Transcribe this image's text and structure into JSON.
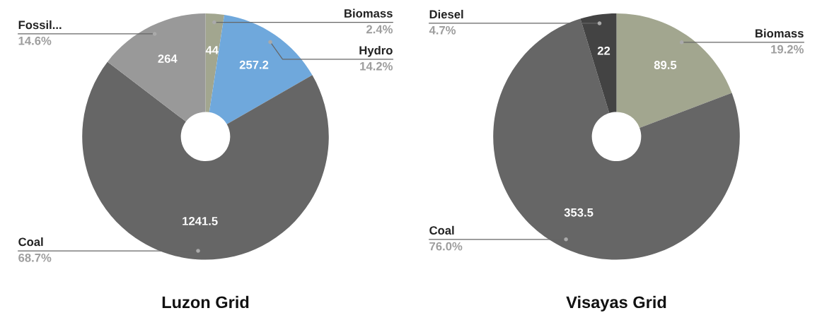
{
  "chart_data": [
    {
      "type": "donut",
      "title": "Luzon Grid",
      "categories": [
        "Biomass",
        "Hydro",
        "Coal",
        "Fossil..."
      ],
      "values": [
        44,
        257.2,
        1241.5,
        264
      ],
      "colors": [
        "#a2a68f",
        "#6fa8dc",
        "#666666",
        "#999999"
      ],
      "data_labels": true,
      "annotations": [
        "2.4%",
        "14.2%",
        "68.7%",
        "14.6%"
      ]
    },
    {
      "type": "donut",
      "title": "Visayas Grid",
      "categories": [
        "Biomass",
        "Coal",
        "Diesel"
      ],
      "values": [
        89.5,
        353.5,
        22
      ],
      "colors": [
        "#a2a68f",
        "#666666",
        "#434343"
      ],
      "data_labels": true,
      "annotations": [
        "19.2%",
        "76.0%",
        "4.7%"
      ]
    }
  ]
}
